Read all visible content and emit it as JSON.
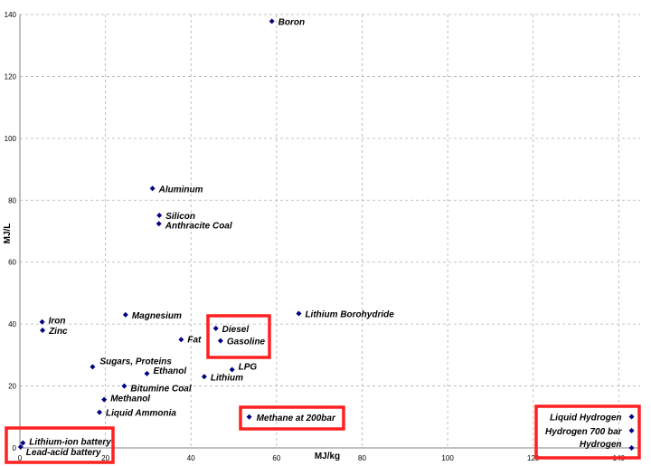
{
  "chart_data": {
    "type": "scatter",
    "xlabel": "MJ/kg",
    "ylabel": "MJ/L",
    "xlim": [
      0,
      145
    ],
    "ylim": [
      0,
      140
    ],
    "x_ticks": [
      0,
      20,
      40,
      60,
      80,
      100,
      120,
      140
    ],
    "y_ticks": [
      0,
      20,
      40,
      60,
      80,
      100,
      120,
      140
    ],
    "grid": true,
    "marker_color": "#000080",
    "highlight_color": "#ff2020",
    "points": [
      {
        "label": "Boron",
        "x": 58.9,
        "y": 137.8
      },
      {
        "label": "Aluminum",
        "x": 31,
        "y": 83.8
      },
      {
        "label": "Silicon",
        "x": 32.6,
        "y": 75.1
      },
      {
        "label": "Anthracite Coal",
        "x": 32.5,
        "y": 72.4
      },
      {
        "label": "Lithium Borohydride",
        "x": 65.2,
        "y": 43.4
      },
      {
        "label": "Magnesium",
        "x": 24.7,
        "y": 43
      },
      {
        "label": "Iron",
        "x": 5.2,
        "y": 40.7
      },
      {
        "label": "Zinc",
        "x": 5.3,
        "y": 38
      },
      {
        "label": "Diesel",
        "x": 45.8,
        "y": 38.6
      },
      {
        "label": "Gasoline",
        "x": 46.9,
        "y": 34.6
      },
      {
        "label": "Fat",
        "x": 37.7,
        "y": 35
      },
      {
        "label": "Sugars, Proteins",
        "x": 17,
        "y": 26.2
      },
      {
        "label": "Ethanol",
        "x": 29.7,
        "y": 24
      },
      {
        "label": "LPG",
        "x": 49.6,
        "y": 25.3
      },
      {
        "label": "Lithium",
        "x": 43.1,
        "y": 23
      },
      {
        "label": "Bitumine Coal",
        "x": 24.4,
        "y": 20
      },
      {
        "label": "Methanol",
        "x": 19.7,
        "y": 15.6
      },
      {
        "label": "Liquid Ammonia",
        "x": 18.6,
        "y": 11.5
      },
      {
        "label": "Methane at 200bar",
        "x": 53.6,
        "y": 10
      },
      {
        "label": "Lithium-ion battery",
        "x": 0.7,
        "y": 1.6
      },
      {
        "label": "Lead-acid battery",
        "x": 0.17,
        "y": 0.3
      },
      {
        "label": "Liquid Hydrogen",
        "x": 143,
        "y": 10.1
      },
      {
        "label": "Hydrogen 700 bar",
        "x": 143,
        "y": 5.6
      },
      {
        "label": "Hydrogen",
        "x": 143,
        "y": 0.01
      }
    ]
  }
}
